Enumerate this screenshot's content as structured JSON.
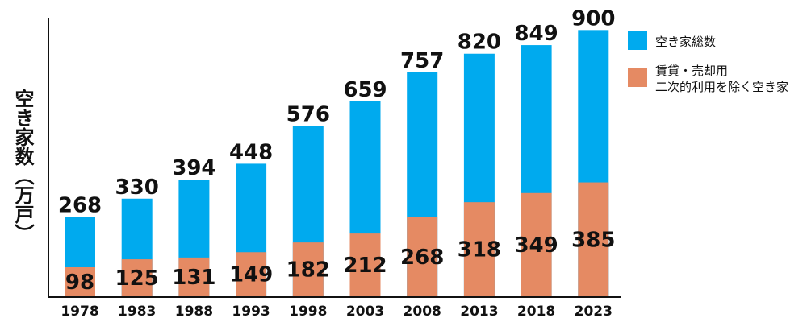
{
  "chart_data": {
    "type": "bar",
    "title": "",
    "xlabel": "",
    "ylabel": "空き家数（万戸）",
    "ylim": [
      0,
      920
    ],
    "categories": [
      "1978",
      "1983",
      "1988",
      "1993",
      "1998",
      "2003",
      "2008",
      "2013",
      "2018",
      "2023"
    ],
    "series": [
      {
        "name": "空き家総数",
        "color": "#00aaee",
        "values": [
          268,
          330,
          394,
          448,
          576,
          659,
          757,
          820,
          849,
          900
        ]
      },
      {
        "name": "賃貸・売却用二次的利用を除く空き家",
        "legend_lines": [
          "賃貸・売却用",
          "二次的利用を除く空き家"
        ],
        "color": "#e58a63",
        "values": [
          98,
          125,
          131,
          149,
          182,
          212,
          268,
          318,
          349,
          385
        ]
      }
    ],
    "legend_position": "right",
    "grid": false
  }
}
